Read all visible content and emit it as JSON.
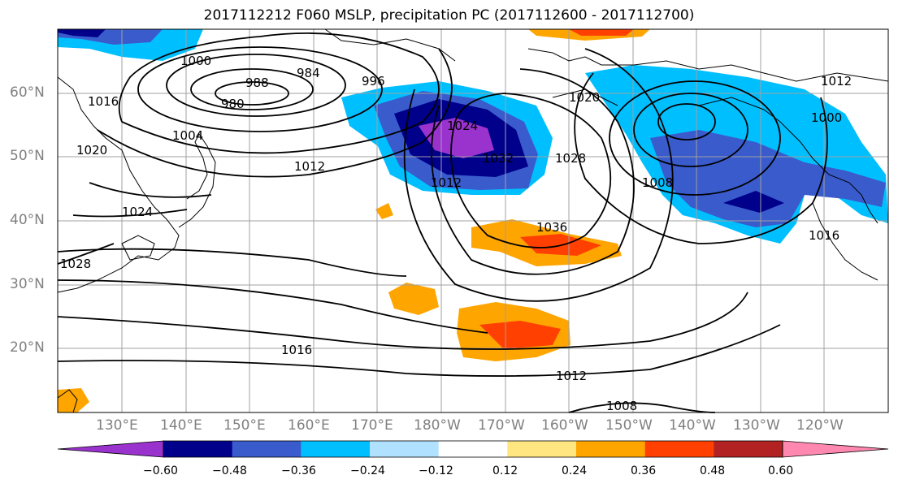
{
  "title": "2017112212 F060 MSLP, precipitation PC (2017112600 - 2017112700)",
  "latitude_labels": [
    "60°N",
    "50°N",
    "40°N",
    "30°N",
    "20°N"
  ],
  "longitude_labels": [
    "130°E",
    "140°E",
    "150°E",
    "160°E",
    "170°E",
    "180°W",
    "170°W",
    "160°W",
    "150°W",
    "140°W",
    "130°W",
    "120°W"
  ],
  "colorbar": {
    "ticks": [
      "−0.60",
      "−0.48",
      "−0.36",
      "−0.24",
      "−0.12",
      "0.12",
      "0.24",
      "0.36",
      "0.48",
      "0.60"
    ],
    "colors": [
      "#9a32cd",
      "#00008b",
      "#3a5bcc",
      "#00bfff",
      "#b0e2ff",
      "#ffffff",
      "#ffe680",
      "#ffa500",
      "#ff4000",
      "#b22222",
      "#ff88b0"
    ]
  },
  "isobar_labels": [
    "1000",
    "988",
    "980",
    "984",
    "996",
    "1004",
    "1012",
    "1016",
    "1020",
    "1024",
    "1028",
    "1032",
    "1036",
    "1012",
    "1016",
    "1020",
    "1024",
    "1028",
    "1008",
    "1016",
    "1008",
    "1012",
    "1000",
    "1012"
  ],
  "colors": {
    "isobar": "#000000",
    "grid": "#a0a0a0",
    "coast": "#000000"
  }
}
